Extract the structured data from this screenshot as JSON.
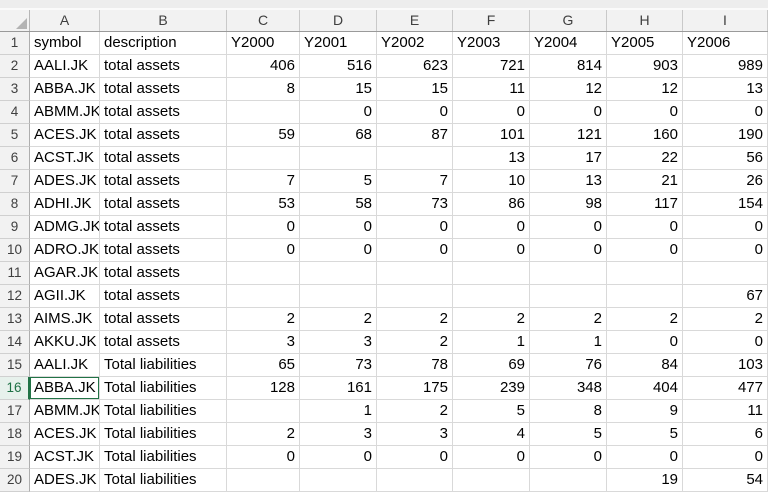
{
  "spreadsheet": {
    "column_letters": [
      "A",
      "B",
      "C",
      "D",
      "E",
      "F",
      "G",
      "H",
      "I"
    ],
    "active_row": "16",
    "rows": [
      {
        "n": "1",
        "cells": [
          "symbol",
          "description",
          "Y2000",
          "Y2001",
          "Y2002",
          "Y2003",
          "Y2004",
          "Y2005",
          "Y2006"
        ]
      },
      {
        "n": "2",
        "cells": [
          "AALI.JK",
          "total assets",
          "406",
          "516",
          "623",
          "721",
          "814",
          "903",
          "989"
        ]
      },
      {
        "n": "3",
        "cells": [
          "ABBA.JK",
          "total assets",
          "8",
          "15",
          "15",
          "11",
          "12",
          "12",
          "13"
        ]
      },
      {
        "n": "4",
        "cells": [
          "ABMM.JK",
          "total assets",
          "",
          "0",
          "0",
          "0",
          "0",
          "0",
          "0"
        ]
      },
      {
        "n": "5",
        "cells": [
          "ACES.JK",
          "total assets",
          "59",
          "68",
          "87",
          "101",
          "121",
          "160",
          "190"
        ]
      },
      {
        "n": "6",
        "cells": [
          "ACST.JK",
          "total assets",
          "",
          "",
          "",
          "13",
          "17",
          "22",
          "56"
        ]
      },
      {
        "n": "7",
        "cells": [
          "ADES.JK",
          "total assets",
          "7",
          "5",
          "7",
          "10",
          "13",
          "21",
          "26"
        ]
      },
      {
        "n": "8",
        "cells": [
          "ADHI.JK",
          "total assets",
          "53",
          "58",
          "73",
          "86",
          "98",
          "117",
          "154"
        ]
      },
      {
        "n": "9",
        "cells": [
          "ADMG.JK",
          "total assets",
          "0",
          "0",
          "0",
          "0",
          "0",
          "0",
          "0"
        ]
      },
      {
        "n": "10",
        "cells": [
          "ADRO.JK",
          "total assets",
          "0",
          "0",
          "0",
          "0",
          "0",
          "0",
          "0"
        ]
      },
      {
        "n": "11",
        "cells": [
          "AGAR.JK",
          "total assets",
          "",
          "",
          "",
          "",
          "",
          "",
          ""
        ]
      },
      {
        "n": "12",
        "cells": [
          "AGII.JK",
          "total assets",
          "",
          "",
          "",
          "",
          "",
          "",
          "67"
        ]
      },
      {
        "n": "13",
        "cells": [
          "AIMS.JK",
          "total assets",
          "2",
          "2",
          "2",
          "2",
          "2",
          "2",
          "2"
        ]
      },
      {
        "n": "14",
        "cells": [
          "AKKU.JK",
          "total assets",
          "3",
          "3",
          "2",
          "1",
          "1",
          "0",
          "0"
        ]
      },
      {
        "n": "15",
        "cells": [
          "AALI.JK",
          "Total liabilities",
          "65",
          "73",
          "78",
          "69",
          "76",
          "84",
          "103"
        ]
      },
      {
        "n": "16",
        "cells": [
          "ABBA.JK",
          "Total liabilities",
          "128",
          "161",
          "175",
          "239",
          "348",
          "404",
          "477"
        ]
      },
      {
        "n": "17",
        "cells": [
          "ABMM.JK",
          "Total liabilities",
          "",
          "1",
          "2",
          "5",
          "8",
          "9",
          "11"
        ]
      },
      {
        "n": "18",
        "cells": [
          "ACES.JK",
          "Total liabilities",
          "2",
          "3",
          "3",
          "4",
          "5",
          "5",
          "6"
        ]
      },
      {
        "n": "19",
        "cells": [
          "ACST.JK",
          "Total liabilities",
          "0",
          "0",
          "0",
          "0",
          "0",
          "0",
          "0"
        ]
      },
      {
        "n": "20",
        "cells": [
          "ADES.JK",
          "Total liabilities",
          "",
          "",
          "",
          "",
          "",
          "19",
          "54"
        ]
      }
    ],
    "colors": {
      "selection_green": "#217346",
      "header_bg": "#f2f2f2",
      "active_row_header_bg": "#e7f1ec",
      "gridline": "#d9d9d9"
    }
  }
}
